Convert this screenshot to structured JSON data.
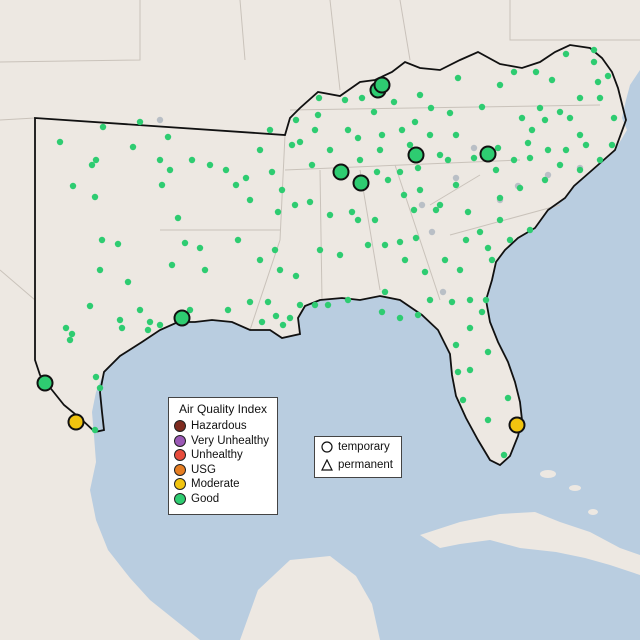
{
  "legend": {
    "title": "Air Quality Index",
    "categories": [
      {
        "label": "Hazardous",
        "color": "#7e2b1f"
      },
      {
        "label": "Very Unhealthy",
        "color": "#9b59b6"
      },
      {
        "label": "Unhealthy",
        "color": "#e74c3c"
      },
      {
        "label": "USG",
        "color": "#e67e22"
      },
      {
        "label": "Moderate",
        "color": "#f1c40f"
      },
      {
        "label": "Good",
        "color": "#2ecc71"
      }
    ]
  },
  "monitor_types": [
    {
      "label": "temporary",
      "icon": "circle-outline-icon"
    },
    {
      "label": "permanent",
      "icon": "triangle-outline-icon"
    }
  ],
  "colors": {
    "water": "#b9cde0",
    "land": "#ede8e2",
    "good": "#2ecc71",
    "moderate": "#f1c40f",
    "offline": "#b9bfc6"
  }
}
